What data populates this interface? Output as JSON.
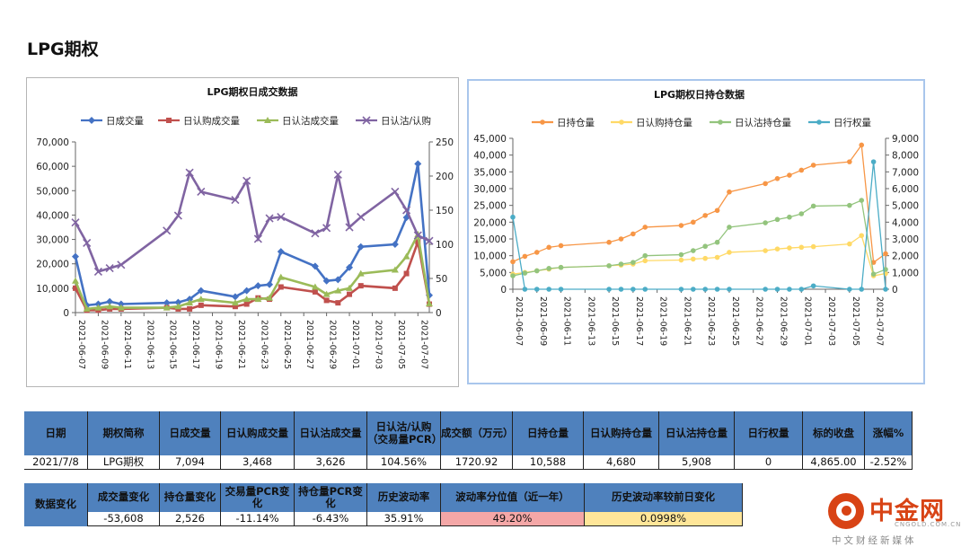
{
  "page": {
    "title": "LPG期权"
  },
  "chart_data": [
    {
      "type": "line",
      "title": "LPG期权日成交数据",
      "x": [
        "2021-06-07",
        "2021-06-08",
        "2021-06-09",
        "2021-06-10",
        "2021-06-11",
        "2021-06-15",
        "2021-06-16",
        "2021-06-17",
        "2021-06-18",
        "2021-06-21",
        "2021-06-22",
        "2021-06-23",
        "2021-06-24",
        "2021-06-25",
        "2021-06-28",
        "2021-06-29",
        "2021-06-30",
        "2021-07-01",
        "2021-07-02",
        "2021-07-05",
        "2021-07-06",
        "2021-07-07",
        "2021-07-08"
      ],
      "xticks": [
        "2021-06-07",
        "2021-06-09",
        "2021-06-11",
        "2021-06-13",
        "2021-06-15",
        "2021-06-17",
        "2021-06-19",
        "2021-06-21",
        "2021-06-23",
        "2021-06-25",
        "2021-06-27",
        "2021-06-29",
        "2021-07-01",
        "2021-07-03",
        "2021-07-05",
        "2021-07-07"
      ],
      "xlim": [
        "2021-06-07",
        "2021-07-08"
      ],
      "ylim": [
        0,
        70000
      ],
      "yticks": [
        "0",
        "10,000",
        "20,000",
        "30,000",
        "40,000",
        "50,000",
        "60,000",
        "70,000"
      ],
      "y2lim": [
        0,
        250
      ],
      "y2ticks": [
        "0",
        "50",
        "100",
        "150",
        "200",
        "250"
      ],
      "legend": "top",
      "grid": false,
      "series": [
        {
          "name": "日成交量",
          "axis": "left",
          "color": "#4472c4",
          "marker": "diamond",
          "values": [
            23000,
            3000,
            3500,
            4500,
            3500,
            4000,
            4200,
            5500,
            9000,
            6500,
            9000,
            11000,
            11500,
            25000,
            19000,
            13000,
            13500,
            18500,
            27000,
            28000,
            39000,
            61000,
            7094
          ]
        },
        {
          "name": "日认购成交量",
          "axis": "left",
          "color": "#c0504d",
          "marker": "square",
          "values": [
            10000,
            1000,
            1000,
            1500,
            1500,
            2000,
            1500,
            1500,
            3000,
            2500,
            3500,
            6000,
            5500,
            10500,
            8500,
            5000,
            4000,
            7500,
            11000,
            10000,
            16000,
            29000,
            3468
          ]
        },
        {
          "name": "日认沽成交量",
          "axis": "left",
          "color": "#9bbb59",
          "marker": "triangle",
          "values": [
            13000,
            1500,
            2000,
            2500,
            2000,
            2000,
            2500,
            4000,
            5500,
            4000,
            5500,
            5500,
            6000,
            14500,
            10500,
            7500,
            9000,
            10000,
            16000,
            17500,
            23000,
            32000,
            3626
          ]
        },
        {
          "name": "日认沽/认购",
          "axis": "right",
          "color": "#8064a2",
          "marker": "x",
          "values": [
            132,
            102,
            60,
            65,
            70,
            120,
            142,
            205,
            177,
            165,
            193,
            108,
            138,
            140,
            116,
            124,
            202,
            125,
            140,
            177,
            150,
            113,
            105
          ]
        }
      ]
    },
    {
      "type": "line",
      "title": "LPG期权日持仓数据",
      "x": [
        "2021-06-07",
        "2021-06-08",
        "2021-06-09",
        "2021-06-10",
        "2021-06-11",
        "2021-06-15",
        "2021-06-16",
        "2021-06-17",
        "2021-06-18",
        "2021-06-21",
        "2021-06-22",
        "2021-06-23",
        "2021-06-24",
        "2021-06-25",
        "2021-06-28",
        "2021-06-29",
        "2021-06-30",
        "2021-07-01",
        "2021-07-02",
        "2021-07-05",
        "2021-07-06",
        "2021-07-07",
        "2021-07-08"
      ],
      "xticks": [
        "2021-06-07",
        "2021-06-09",
        "2021-06-11",
        "2021-06-13",
        "2021-06-15",
        "2021-06-17",
        "2021-06-19",
        "2021-06-21",
        "2021-06-23",
        "2021-06-25",
        "2021-06-27",
        "2021-06-29",
        "2021-07-01",
        "2021-07-03",
        "2021-07-05",
        "2021-07-07"
      ],
      "xlim": [
        "2021-06-07",
        "2021-07-08"
      ],
      "ylim": [
        0,
        45000
      ],
      "yticks": [
        "0",
        "5,000",
        "10,000",
        "15,000",
        "20,000",
        "25,000",
        "30,000",
        "35,000",
        "40,000",
        "45,000"
      ],
      "y2lim": [
        0,
        9000
      ],
      "y2ticks": [
        "0",
        "1,000",
        "2,000",
        "3,000",
        "4,000",
        "5,000",
        "6,000",
        "7,000",
        "8,000",
        "9,000"
      ],
      "legend": "top",
      "grid": false,
      "series": [
        {
          "name": "日持仓量",
          "axis": "left",
          "color": "#f79646",
          "marker": "dot",
          "values": [
            8200,
            9800,
            11000,
            12500,
            13000,
            14000,
            15000,
            16500,
            18500,
            19000,
            20000,
            22000,
            23500,
            29000,
            31500,
            33000,
            34000,
            35500,
            37000,
            38000,
            43000,
            8000,
            10588
          ]
        },
        {
          "name": "日认购持仓量",
          "axis": "left",
          "color": "#ffd966",
          "marker": "dot",
          "values": [
            4500,
            5000,
            5500,
            6000,
            6500,
            7000,
            7200,
            7500,
            8500,
            8700,
            9000,
            9200,
            9500,
            11000,
            11500,
            12000,
            12300,
            12500,
            12700,
            13500,
            16000,
            4000,
            4680
          ]
        },
        {
          "name": "日认沽持仓量",
          "axis": "left",
          "color": "#93c47d",
          "marker": "dot",
          "values": [
            4000,
            4800,
            5500,
            6200,
            6500,
            7000,
            7500,
            8000,
            10000,
            10300,
            11500,
            12800,
            14000,
            18500,
            19800,
            20800,
            21500,
            22500,
            24800,
            25000,
            26500,
            4500,
            5908
          ]
        },
        {
          "name": "日行权量",
          "axis": "right",
          "color": "#4bacc6",
          "marker": "dot",
          "values": [
            4300,
            0,
            0,
            0,
            0,
            0,
            0,
            0,
            0,
            0,
            0,
            0,
            0,
            0,
            0,
            0,
            0,
            0,
            200,
            0,
            0,
            7600,
            0
          ]
        }
      ]
    }
  ],
  "table1": {
    "headers": [
      "日期",
      "期权简称",
      "日成交量",
      "日认购成交量",
      "日认沽成交量",
      "日认沽/认购（交易量PCR）",
      "成交额（万元）",
      "日持仓量",
      "日认购持仓量",
      "日认沽持仓量",
      "日行权量",
      "标的收盘",
      "涨幅%"
    ],
    "values": [
      "2021/7/8",
      "LPG期权",
      "7,094",
      "3,468",
      "3,626",
      "104.56%",
      "1720.92",
      "10,588",
      "4,680",
      "5,908",
      "0",
      "4,865.00",
      "-2.52%"
    ]
  },
  "table2": {
    "row_label": "数据变化",
    "headers": [
      "成交量变化",
      "持仓量变化",
      "交易量PCR变化",
      "持仓量PCR变化",
      "历史波动率",
      "波动率分位值（近一年）",
      "历史波动率较前日变化"
    ],
    "values": [
      "-53,608",
      "2,526",
      "-11.14%",
      "-6.43%",
      "35.91%",
      "49.20%",
      "0.0998%"
    ],
    "highlight_colors": {
      "pct_rank": "#f4a7a7",
      "hv_change": "#ffe699",
      "header": "#4f81bd"
    }
  },
  "logo": {
    "name": "中金网",
    "url": "CNGOLD.COM.CN",
    "tagline": "中文财经新媒体"
  }
}
